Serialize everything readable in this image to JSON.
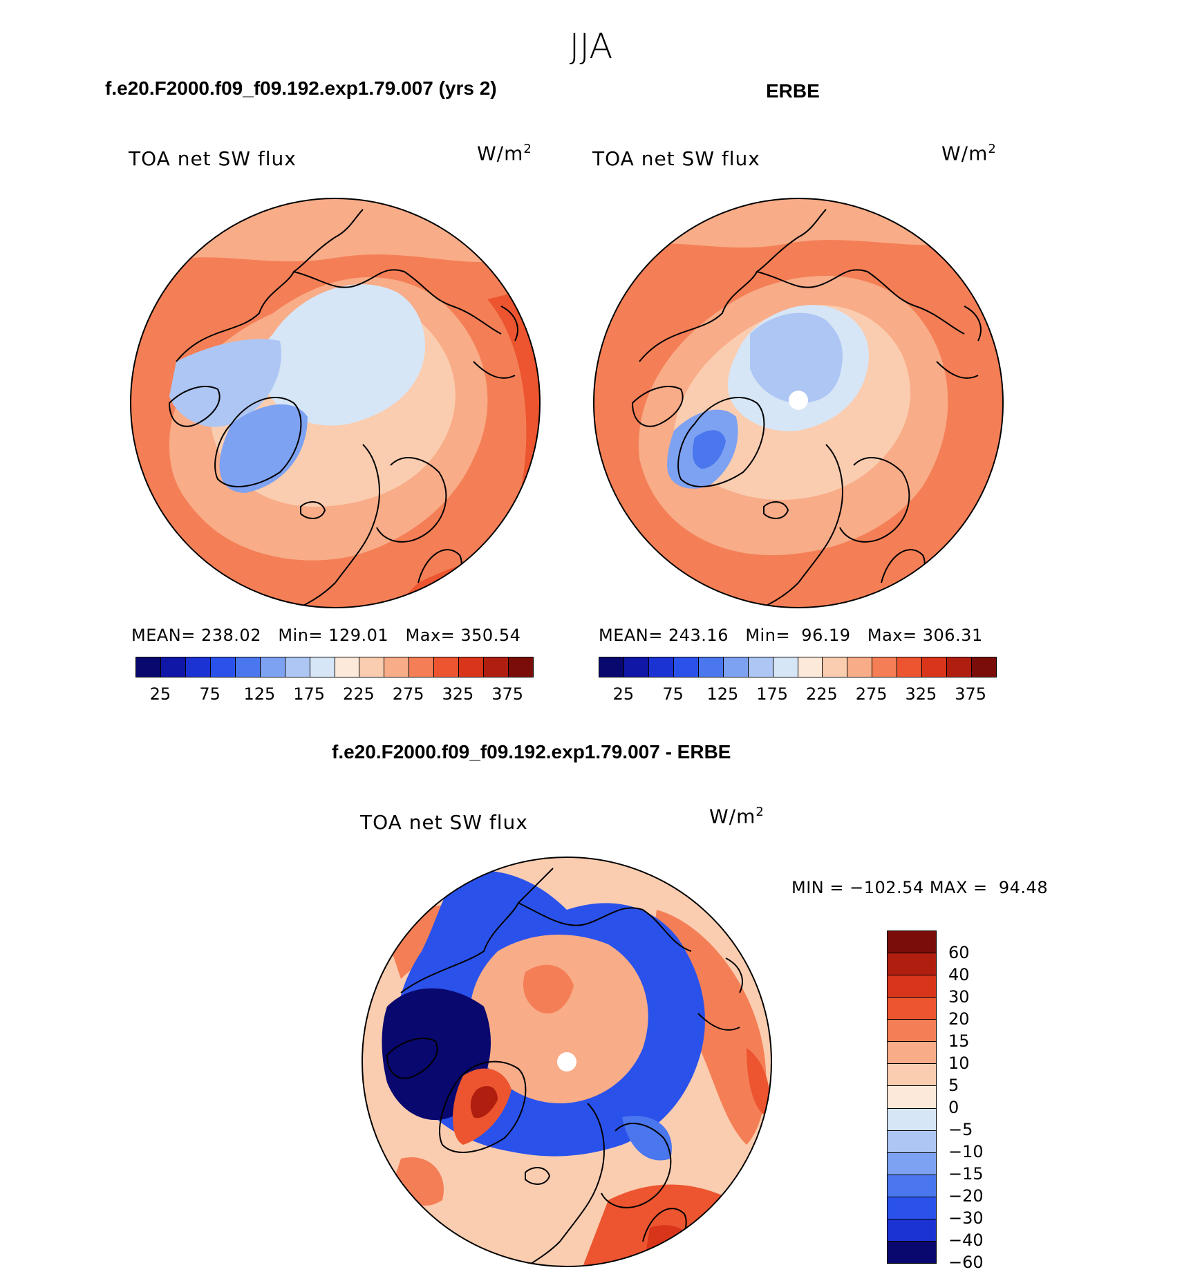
{
  "season": "JJA",
  "panels": [
    {
      "title": "f.e20.F2000.f09_f09.192.exp1.79.007 (yrs 2)",
      "variable": "TOA net SW flux",
      "unit_base": "W/m",
      "unit_exp": "2",
      "stats": "MEAN= 238.02   Min= 129.01   Max= 350.54"
    },
    {
      "title": "ERBE",
      "variable": "TOA net SW flux",
      "unit_base": "W/m",
      "unit_exp": "2",
      "stats": "MEAN= 243.16   Min=  96.19   Max= 306.31"
    },
    {
      "title": "f.e20.F2000.f09_f09.192.exp1.79.007 - ERBE",
      "variable": "TOA net SW flux",
      "unit_base": "W/m",
      "unit_exp": "2",
      "stats": "MIN = −102.54 MAX =  94.48"
    }
  ],
  "colors": {
    "abs_palette": [
      "#08086e",
      "#1017a6",
      "#1c33d4",
      "#2a52eb",
      "#4a76ee",
      "#7ea2f2",
      "#aec6f4",
      "#d6e6f7",
      "#fde9d9",
      "#fbcdb0",
      "#f8ac88",
      "#f47f56",
      "#ec552f",
      "#d8351a",
      "#b01e0f",
      "#7a0d0a"
    ],
    "diff_palette": [
      "#7a0d0a",
      "#b01e0f",
      "#d8351a",
      "#ec552f",
      "#f47f56",
      "#f8ac88",
      "#fbcdb0",
      "#fde9d9",
      "#d6e6f7",
      "#aec6f4",
      "#7ea2f2",
      "#4a76ee",
      "#2a52eb",
      "#1c33d4",
      "#08086e"
    ]
  },
  "chart_data": [
    {
      "type": "heatmap",
      "projection": "north polar stereographic",
      "title": "f.e20.F2000.f09_f09.192.exp1.79.007 (yrs 2)",
      "variable": "TOA net SW flux",
      "units": "W/m2",
      "mean": 238.02,
      "min": 129.01,
      "max": 350.54,
      "colorbar_levels": [
        25,
        50,
        75,
        100,
        125,
        150,
        175,
        200,
        225,
        250,
        275,
        300,
        325,
        350,
        375
      ],
      "colorbar_tick_labels": [
        "25",
        "75",
        "125",
        "175",
        "225",
        "275",
        "325",
        "375"
      ]
    },
    {
      "type": "heatmap",
      "projection": "north polar stereographic",
      "title": "ERBE",
      "variable": "TOA net SW flux",
      "units": "W/m2",
      "mean": 243.16,
      "min": 96.19,
      "max": 306.31,
      "colorbar_levels": [
        25,
        50,
        75,
        100,
        125,
        150,
        175,
        200,
        225,
        250,
        275,
        300,
        325,
        350,
        375
      ],
      "colorbar_tick_labels": [
        "25",
        "75",
        "125",
        "175",
        "225",
        "275",
        "325",
        "375"
      ]
    },
    {
      "type": "heatmap",
      "projection": "north polar stereographic",
      "title": "f.e20.F2000.f09_f09.192.exp1.79.007 - ERBE",
      "variable": "TOA net SW flux",
      "units": "W/m2",
      "min": -102.54,
      "max": 94.48,
      "colorbar_levels": [
        60,
        40,
        30,
        20,
        15,
        10,
        5,
        0,
        -5,
        -10,
        -15,
        -20,
        -30,
        -40,
        -60
      ],
      "colorbar_tick_labels": [
        "60",
        "40",
        "30",
        "20",
        "15",
        "10",
        "5",
        "0",
        "−5",
        "−10",
        "−15",
        "−20",
        "−30",
        "−40",
        "−60"
      ]
    }
  ]
}
